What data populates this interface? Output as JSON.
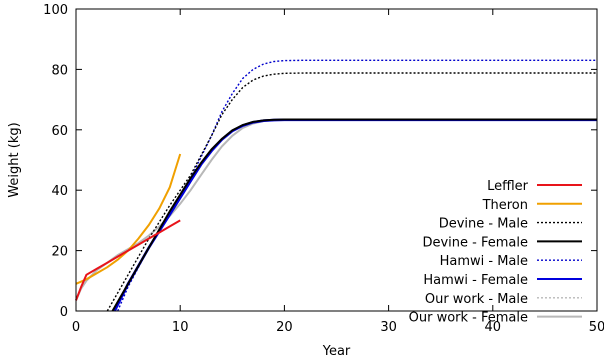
{
  "chart_data": {
    "type": "line",
    "title": "",
    "xlabel": "Year",
    "ylabel": "Weight (kg)",
    "xlim": [
      0,
      50
    ],
    "ylim": [
      0,
      100
    ],
    "xticks": [
      0,
      10,
      20,
      30,
      40,
      50
    ],
    "yticks": [
      0,
      20,
      40,
      60,
      80,
      100
    ],
    "grid": false,
    "legend_position": "right",
    "series": [
      {
        "name": "Leffler",
        "color": "#e8141a",
        "style": "solid",
        "x": [
          0,
          0.5,
          1,
          2,
          3,
          4,
          5,
          6,
          7,
          8,
          9,
          10
        ],
        "y": [
          3.5,
          8,
          12,
          14,
          16,
          18,
          20,
          22,
          24,
          26,
          28,
          30
        ]
      },
      {
        "name": "Theron",
        "color": "#f0a000",
        "style": "solid",
        "x": [
          0,
          1,
          2,
          3,
          4,
          5,
          6,
          7,
          8,
          9,
          10
        ],
        "y": [
          9,
          10.5,
          12.5,
          14.5,
          17,
          20,
          24,
          28.5,
          34,
          41,
          52
        ]
      },
      {
        "name": "Devine - Male",
        "color": "#000000",
        "style": "dotted",
        "x": [
          3,
          5,
          7,
          9,
          11,
          13,
          14,
          15,
          16,
          17,
          18,
          19,
          20,
          22,
          25,
          30,
          35,
          40,
          45,
          50
        ],
        "y": [
          0,
          12,
          24,
          35,
          45,
          58,
          65,
          70,
          74,
          76.5,
          77.8,
          78.4,
          78.7,
          78.8,
          78.8,
          78.8,
          78.8,
          78.8,
          78.8,
          78.8
        ]
      },
      {
        "name": "Devine - Female",
        "color": "#000000",
        "style": "solid",
        "x": [
          3.5,
          5,
          7,
          9,
          11,
          12,
          13,
          14,
          15,
          16,
          17,
          18,
          19,
          20,
          25,
          30,
          35,
          40,
          45,
          50
        ],
        "y": [
          0,
          9,
          21,
          33,
          44,
          49,
          53.5,
          57,
          59.8,
          61.6,
          62.6,
          63.1,
          63.3,
          63.4,
          63.4,
          63.4,
          63.4,
          63.4,
          63.4,
          63.4
        ]
      },
      {
        "name": "Hamwi - Male",
        "color": "#0000cc",
        "style": "dotted",
        "x": [
          4,
          5,
          7,
          9,
          11,
          13,
          14,
          15,
          16,
          17,
          18,
          19,
          20,
          22,
          25,
          30,
          35,
          40,
          45,
          50
        ],
        "y": [
          0,
          8,
          21,
          33,
          44,
          58,
          66,
          72,
          77,
          80,
          81.8,
          82.6,
          82.9,
          83,
          83,
          83,
          83,
          83,
          83,
          83
        ]
      },
      {
        "name": "Hamwi - Female",
        "color": "#0000dd",
        "style": "solid",
        "x": [
          3.7,
          5,
          7,
          9,
          11,
          12,
          13,
          14,
          15,
          16,
          17,
          18,
          19,
          20,
          25,
          30,
          35,
          40,
          45,
          50
        ],
        "y": [
          0,
          9,
          21,
          32,
          43,
          48.5,
          53,
          56.8,
          59.6,
          61.4,
          62.5,
          63,
          63.2,
          63.3,
          63.3,
          63.3,
          63.3,
          63.3,
          63.3,
          63.3
        ]
      },
      {
        "name": "Our work - Male",
        "color": "#b8b8b8",
        "style": "dotted",
        "x": [
          0,
          0.5,
          1,
          2,
          3,
          4,
          5,
          6,
          7,
          8,
          9,
          10,
          11,
          12,
          13,
          14,
          15,
          16,
          17,
          18,
          19,
          20,
          25,
          30,
          35,
          40,
          45,
          50
        ],
        "y": [
          3.5,
          7.5,
          10,
          13.5,
          16,
          18.5,
          20.5,
          22.5,
          25,
          28,
          31.5,
          35.5,
          40,
          45,
          50,
          54.5,
          58,
          60.6,
          62.1,
          62.9,
          63.2,
          63.3,
          63.3,
          63.3,
          63.3,
          63.3,
          63.3,
          63.3
        ]
      },
      {
        "name": "Our work - Female",
        "color": "#b8b8b8",
        "style": "solid",
        "x": [
          0,
          0.5,
          1,
          2,
          3,
          4,
          5,
          6,
          7,
          8,
          9,
          10,
          11,
          12,
          13,
          14,
          15,
          16,
          17,
          18,
          19,
          20,
          25,
          30,
          35,
          40,
          45,
          50
        ],
        "y": [
          3.5,
          7.5,
          10,
          13.5,
          16,
          18.5,
          20.5,
          22.5,
          25,
          28,
          31.5,
          35.5,
          40,
          45,
          50,
          54.5,
          58,
          60.6,
          62.1,
          62.9,
          63.2,
          63.3,
          63.3,
          63.3,
          63.3,
          63.3,
          63.3,
          63.3
        ]
      }
    ]
  }
}
